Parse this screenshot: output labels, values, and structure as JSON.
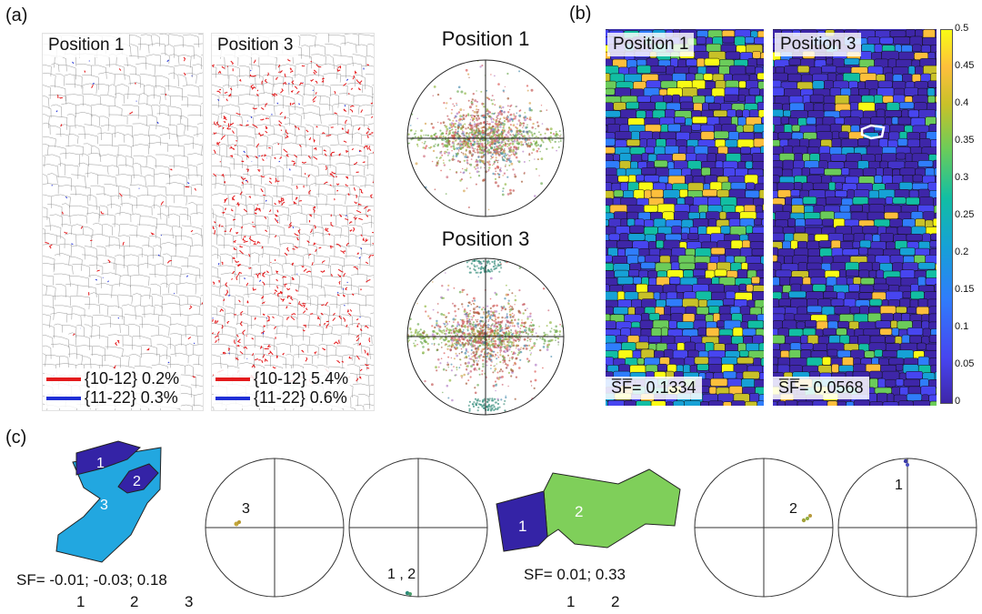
{
  "panels": {
    "a": "(a)",
    "b": "(b)",
    "c": "(c)"
  },
  "panel_a": {
    "maps": [
      {
        "title": "Position 1",
        "legend": [
          {
            "label": "{10-12} 0.2%",
            "color": "#e41a1c"
          },
          {
            "label": "{11-22} 0.3%",
            "color": "#1f2fd6"
          }
        ]
      },
      {
        "title": "Position 3",
        "legend": [
          {
            "label": "{10-12} 5.4%",
            "color": "#e41a1c"
          },
          {
            "label": "{11-22} 0.6%",
            "color": "#1f2fd6"
          }
        ]
      }
    ],
    "pole_figures": [
      {
        "title": "Position 1"
      },
      {
        "title": "Position 3"
      }
    ]
  },
  "panel_b": {
    "maps": [
      {
        "title": "Position 1",
        "sf_label": "S̅F̅= 0.1334"
      },
      {
        "title": "Position 3",
        "sf_label": "S̅F̅= 0.0568"
      }
    ],
    "colorbar": {
      "ticks": [
        "0.5",
        "0.45",
        "0.4",
        "0.35",
        "0.3",
        "0.25",
        "0.2",
        "0.15",
        "0.1",
        "0.05",
        "0"
      ],
      "range": [
        0,
        0.5
      ]
    }
  },
  "panel_c": {
    "left": {
      "grain_labels": [
        "1",
        "2",
        "3"
      ],
      "sf_text": "SF= -0.01; -0.03; 0.18",
      "sf_indices": [
        "1",
        "2",
        "3"
      ],
      "pf1_label": "3",
      "pf2_label": "1 ,  2",
      "colors": {
        "grain1": "#3423a6",
        "grain2": "#3423a6",
        "grain3": "#22a7e0"
      }
    },
    "right": {
      "grain_labels": [
        "1",
        "2"
      ],
      "sf_text": "SF= 0.01; 0.33",
      "sf_indices": [
        "1",
        "2"
      ],
      "pf1_label": "2",
      "pf2_label": "1",
      "colors": {
        "grain1": "#3423a6",
        "grain2": "#7fcf5a"
      }
    }
  }
}
